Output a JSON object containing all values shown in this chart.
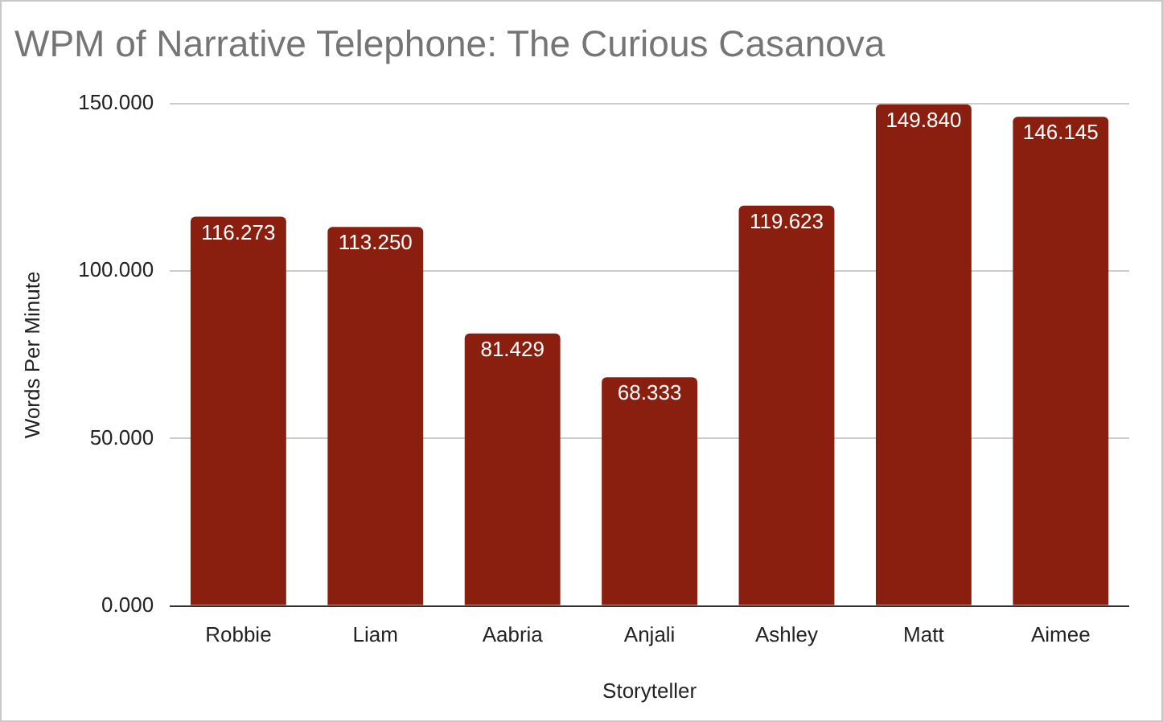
{
  "chart_data": {
    "type": "bar",
    "title": "WPM of Narrative Telephone: The Curious Casanova",
    "xlabel": "Storyteller",
    "ylabel": "Words Per Minute",
    "categories": [
      "Robbie",
      "Liam",
      "Aabria",
      "Anjali",
      "Ashley",
      "Matt",
      "Aimee"
    ],
    "values": [
      116.273,
      113.25,
      81.429,
      68.333,
      119.623,
      149.84,
      146.145
    ],
    "value_labels": [
      "116.273",
      "113.250",
      "81.429",
      "68.333",
      "119.623",
      "149.840",
      "146.145"
    ],
    "color": "#8a1f0f",
    "ylim": [
      0,
      150
    ],
    "yticks": [
      {
        "value": 0,
        "label": "0.000"
      },
      {
        "value": 50,
        "label": "50.000"
      },
      {
        "value": 100,
        "label": "100.000"
      },
      {
        "value": 150,
        "label": "150.000"
      }
    ],
    "grid": "y",
    "legend": false
  }
}
